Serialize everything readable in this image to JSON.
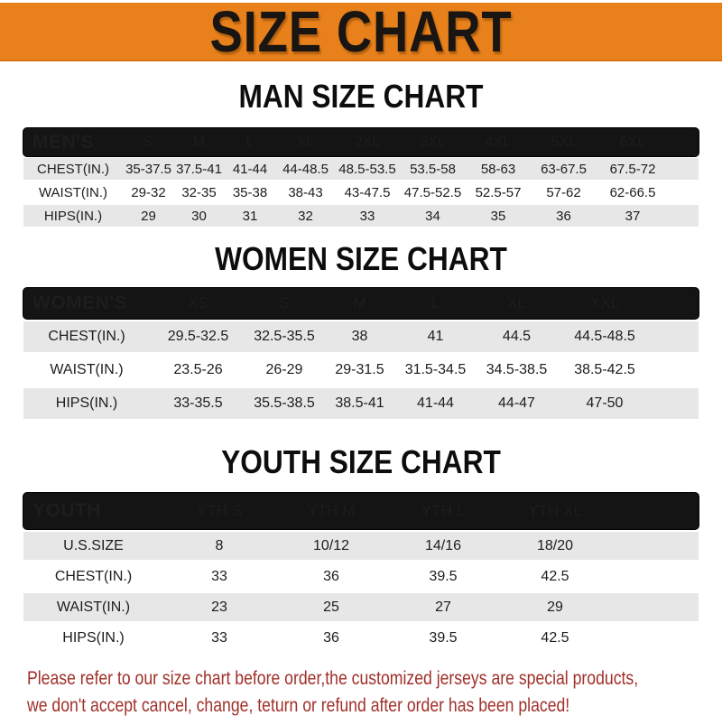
{
  "banner": {
    "title": "SIZE CHART",
    "bg_color": "#E8801B",
    "text_color": "#181512"
  },
  "sections": [
    {
      "heading": "MAN SIZE CHART",
      "table": {
        "header_label": "MEN'S",
        "columns": [
          "S",
          "M",
          "L",
          "XL",
          "2XL",
          "3XL",
          "4XL",
          "5XL",
          "6XL"
        ],
        "rows": [
          {
            "label": "CHEST(IN.)",
            "values": [
              "35-37.5",
              "37.5-41",
              "41-44",
              "44-48.5",
              "48.5-53.5",
              "53.5-58",
              "58-63",
              "63-67.5",
              "67.5-72"
            ]
          },
          {
            "label": "WAIST(IN.)",
            "values": [
              "29-32",
              "32-35",
              "35-38",
              "38-43",
              "43-47.5",
              "47.5-52.5",
              "52.5-57",
              "57-62",
              "62-66.5"
            ]
          },
          {
            "label": "HIPS(IN.)",
            "values": [
              "29",
              "30",
              "31",
              "32",
              "33",
              "34",
              "35",
              "36",
              "37"
            ]
          }
        ]
      }
    },
    {
      "heading": "WOMEN SIZE CHART",
      "table": {
        "header_label": "WOMEN'S",
        "columns": [
          "XS",
          "S",
          "M",
          "L",
          "XL",
          "XXL"
        ],
        "rows": [
          {
            "label": "CHEST(IN.)",
            "values": [
              "29.5-32.5",
              "32.5-35.5",
              "38",
              "41",
              "44.5",
              "44.5-48.5"
            ]
          },
          {
            "label": "WAIST(IN.)",
            "values": [
              "23.5-26",
              "26-29",
              "29-31.5",
              "31.5-34.5",
              "34.5-38.5",
              "38.5-42.5"
            ]
          },
          {
            "label": "HIPS(IN.)",
            "values": [
              "33-35.5",
              "35.5-38.5",
              "38.5-41",
              "41-44",
              "44-47",
              "47-50"
            ]
          }
        ]
      }
    },
    {
      "heading": "YOUTH SIZE CHART",
      "table": {
        "header_label": "YOUTH",
        "columns": [
          "YTH S",
          "YTH M",
          "YTH L",
          "YTH XL"
        ],
        "rows": [
          {
            "label": "U.S.SIZE",
            "values": [
              "8",
              "10/12",
              "14/16",
              "18/20"
            ]
          },
          {
            "label": "CHEST(IN.)",
            "values": [
              "33",
              "36",
              "39.5",
              "42.5"
            ]
          },
          {
            "label": "WAIST(IN.)",
            "values": [
              "23",
              "25",
              "27",
              "29"
            ]
          },
          {
            "label": "HIPS(IN.)",
            "values": [
              "33",
              "36",
              "39.5",
              "42.5"
            ]
          }
        ]
      }
    }
  ],
  "footer": {
    "lines": [
      "Please refer to our size chart before order,the customized jerseys are special products,",
      "we don't accept cancel, change, teturn or refund after order has been placed!"
    ],
    "text_color": "#A0302A"
  },
  "theme": {
    "table_header_bg": "#141414",
    "table_header_text": "#FFFFFF",
    "row_alt_bg": "#E7E7E7",
    "row_bg": "#FFFFFF"
  }
}
